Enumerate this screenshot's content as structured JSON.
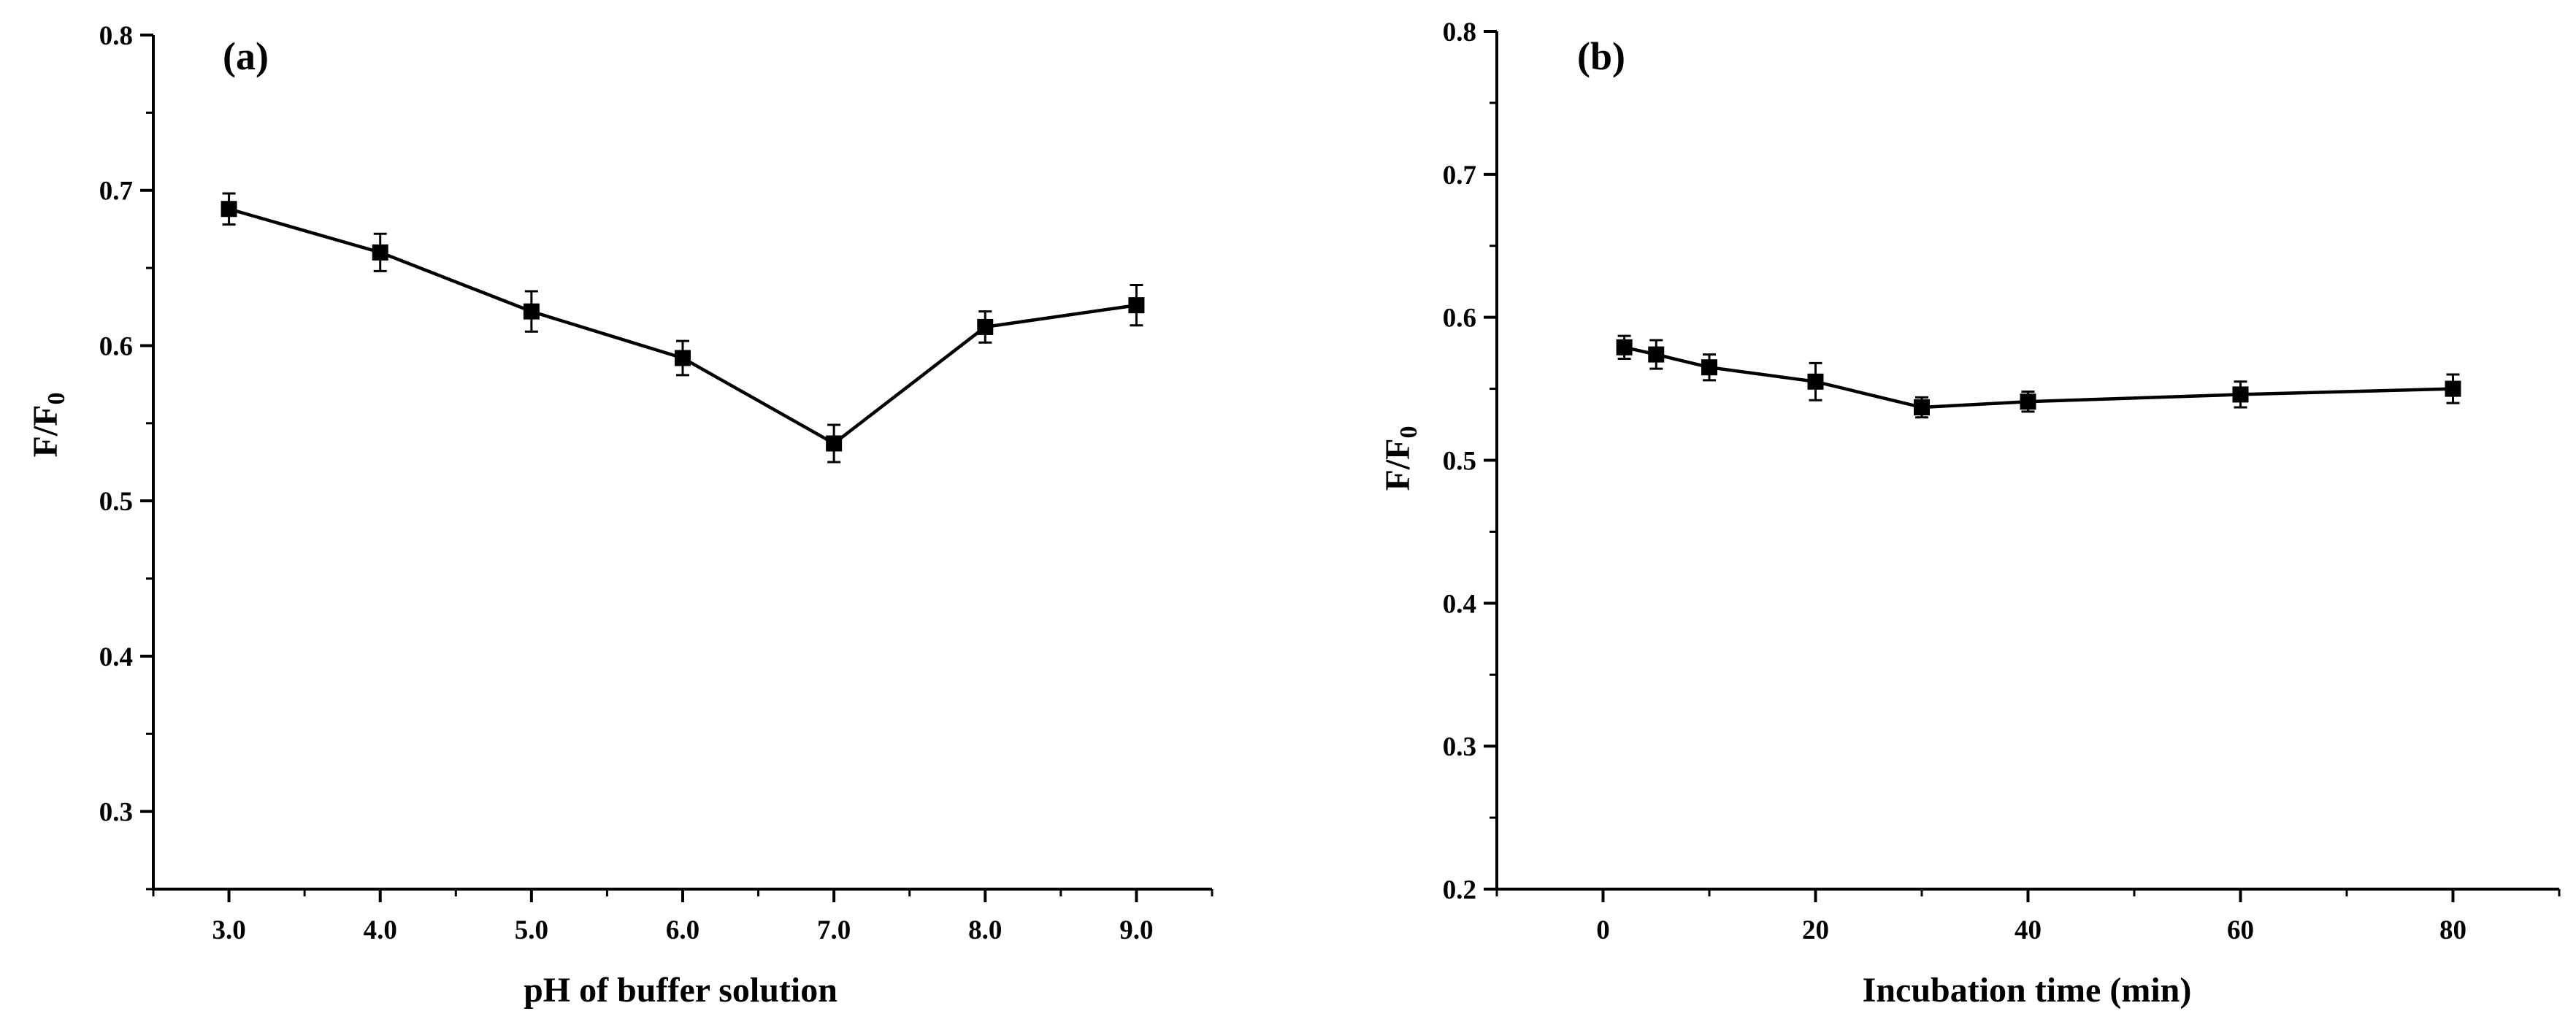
{
  "chart_data": [
    {
      "type": "line",
      "panel_label": "(a)",
      "xlabel": "pH of buffer solution",
      "ylabel_main": "F/F",
      "ylabel_sub": "0",
      "xlim": [
        2.5,
        9.5
      ],
      "ylim": [
        0.25,
        0.8
      ],
      "x_ticks": [
        3.0,
        4.0,
        5.0,
        6.0,
        7.0,
        8.0,
        9.0
      ],
      "x_tick_labels": [
        "3.0",
        "4.0",
        "5.0",
        "6.0",
        "7.0",
        "8.0",
        "9.0"
      ],
      "y_ticks": [
        0.3,
        0.4,
        0.5,
        0.6,
        0.7,
        0.8
      ],
      "y_tick_labels": [
        "0.3",
        "0.4",
        "0.5",
        "0.6",
        "0.7",
        "0.8"
      ],
      "grid": false,
      "series": [
        {
          "name": "F/F0",
          "x": [
            3.0,
            4.0,
            5.0,
            6.0,
            7.0,
            8.0,
            9.0
          ],
          "y": [
            0.688,
            0.66,
            0.622,
            0.592,
            0.537,
            0.612,
            0.626
          ],
          "err": [
            0.01,
            0.012,
            0.013,
            0.011,
            0.012,
            0.01,
            0.013
          ]
        }
      ]
    },
    {
      "type": "line",
      "panel_label": "(b)",
      "xlabel": "Incubation time (min)",
      "ylabel_main": "F/F",
      "ylabel_sub": "0",
      "xlim": [
        -10,
        90
      ],
      "ylim": [
        0.2,
        0.8
      ],
      "x_ticks": [
        0,
        20,
        40,
        60,
        80
      ],
      "x_tick_labels": [
        "0",
        "20",
        "40",
        "60",
        "80"
      ],
      "y_ticks": [
        0.2,
        0.3,
        0.4,
        0.5,
        0.6,
        0.7,
        0.8
      ],
      "y_tick_labels": [
        "0.2",
        "0.3",
        "0.4",
        "0.5",
        "0.6",
        "0.7",
        "0.8"
      ],
      "grid": false,
      "series": [
        {
          "name": "F/F0",
          "x": [
            2,
            5,
            10,
            20,
            30,
            40,
            60,
            80
          ],
          "y": [
            0.579,
            0.574,
            0.565,
            0.555,
            0.537,
            0.541,
            0.546,
            0.55
          ],
          "err": [
            0.008,
            0.01,
            0.009,
            0.013,
            0.007,
            0.007,
            0.009,
            0.01
          ]
        }
      ]
    }
  ]
}
